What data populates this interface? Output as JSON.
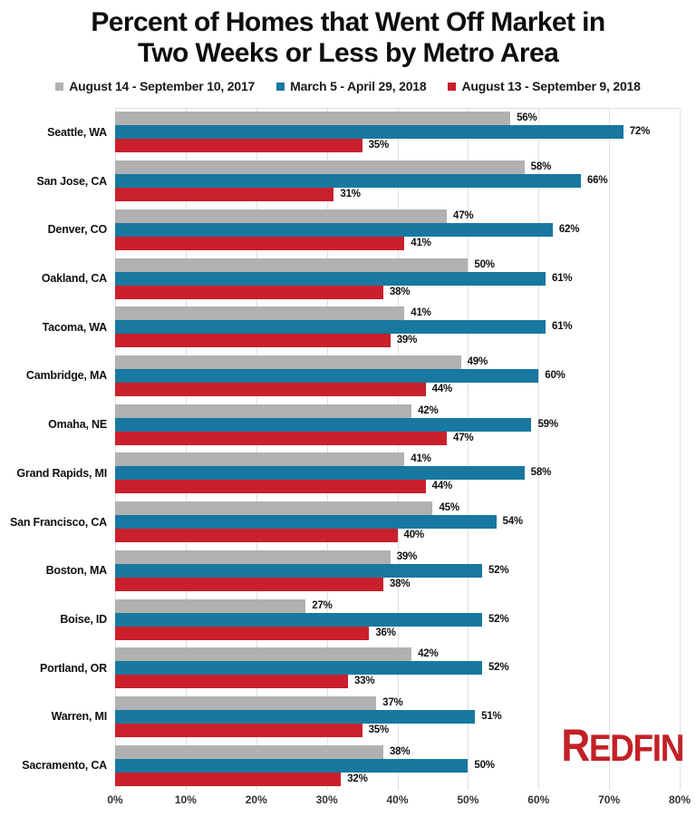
{
  "title_lines": {
    "line1": "Percent of Homes that Went Off Market in",
    "line2": "Two Weeks or Less by Metro Area"
  },
  "logo": {
    "text_first": "R",
    "text_rest": "EDFIN",
    "color": "#c32127"
  },
  "colors": {
    "series_gray": "#b1b1b1",
    "series_blue": "#1878a0",
    "series_red": "#c9202b",
    "gridline": "#e0e0e0",
    "plot_top_border": "#dcdcdc"
  },
  "chart_data": {
    "type": "bar",
    "orientation": "horizontal",
    "title": "Percent of Homes that Went Off Market in Two Weeks or Less by Metro Area",
    "categories": [
      "Seattle, WA",
      "San Jose, CA",
      "Denver, CO",
      "Oakland, CA",
      "Tacoma, WA",
      "Cambridge, MA",
      "Omaha, NE",
      "Grand Rapids, MI",
      "San Francisco, CA",
      "Boston, MA",
      "Boise, ID",
      "Portland, OR",
      "Warren, MI",
      "Sacramento, CA"
    ],
    "series": [
      {
        "name": "August 14 - September 10, 2017",
        "color": "#b1b1b1",
        "values": [
          56,
          58,
          47,
          50,
          41,
          49,
          42,
          41,
          45,
          39,
          27,
          42,
          37,
          38
        ]
      },
      {
        "name": "March 5 - April 29, 2018",
        "color": "#1878a0",
        "values": [
          72,
          66,
          62,
          61,
          61,
          60,
          59,
          58,
          54,
          52,
          52,
          52,
          51,
          50
        ]
      },
      {
        "name": "August 13 - September 9, 2018",
        "color": "#c9202b",
        "values": [
          35,
          31,
          41,
          38,
          39,
          44,
          47,
          44,
          40,
          38,
          36,
          33,
          35,
          32
        ]
      }
    ],
    "xlim": [
      0,
      80
    ],
    "x_tick_labels": [
      "0%",
      "10%",
      "20%",
      "30%",
      "40%",
      "50%",
      "60%",
      "70%",
      "80%"
    ],
    "value_label_format": "{v}%",
    "grid": "vertical",
    "legend_position": "top",
    "xlabel": "",
    "ylabel": ""
  }
}
